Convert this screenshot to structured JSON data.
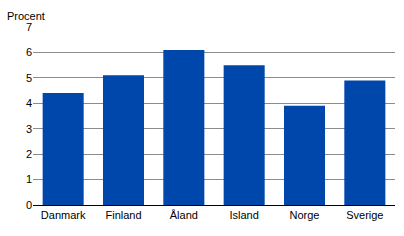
{
  "chart_data": {
    "type": "bar",
    "ylabel": "Procent",
    "categories": [
      "Danmark",
      "Finland",
      "Åland",
      "Island",
      "Norge",
      "Sverige"
    ],
    "values": [
      4.4,
      5.1,
      6.1,
      5.5,
      3.9,
      4.9
    ],
    "color": "#0047ab",
    "ylim": [
      0,
      7
    ],
    "yticks": [
      0,
      1,
      2,
      3,
      4,
      5,
      6,
      7
    ],
    "grid": true
  }
}
